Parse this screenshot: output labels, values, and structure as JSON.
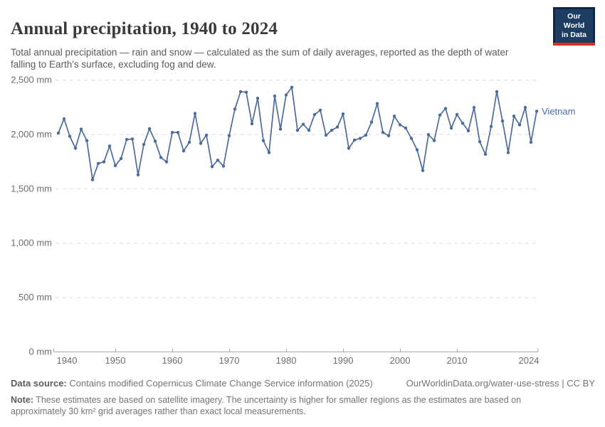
{
  "header": {
    "title": "Annual precipitation, 1940 to 2024",
    "subtitle": "Total annual precipitation — rain and snow — calculated as the sum of daily averages, reported as the depth of water falling to Earth's surface, excluding fog and dew.",
    "logo_line1": "Our World",
    "logo_line2": "in Data"
  },
  "chart_data": {
    "type": "line",
    "title": "Annual precipitation, 1940 to 2024",
    "unit": "mm",
    "xlim": [
      1940,
      2024
    ],
    "ylim": [
      0,
      2500
    ],
    "grid": "horizontal dashed",
    "legend_position": "end-of-line entity label",
    "entity_label": "Vietnam",
    "y_ticks": [
      0,
      500,
      1000,
      1500,
      2000,
      2500
    ],
    "y_tick_labels": [
      "0 mm",
      "500 mm",
      "1,000 mm",
      "1,500 mm",
      "2,000 mm",
      "2,500 mm"
    ],
    "x_ticks": [
      1940,
      1950,
      1960,
      1970,
      1980,
      1990,
      2000,
      2010,
      2024
    ],
    "x_tick_labels": [
      "1940",
      "1950",
      "1960",
      "1970",
      "1980",
      "1990",
      "2000",
      "2010",
      "2024"
    ],
    "series": [
      {
        "name": "Vietnam",
        "color": "#4c6a9c",
        "x": [
          1940,
          1941,
          1942,
          1943,
          1944,
          1945,
          1946,
          1947,
          1948,
          1949,
          1950,
          1951,
          1952,
          1953,
          1954,
          1955,
          1956,
          1957,
          1958,
          1959,
          1960,
          1961,
          1962,
          1963,
          1964,
          1965,
          1966,
          1967,
          1968,
          1969,
          1970,
          1971,
          1972,
          1973,
          1974,
          1975,
          1976,
          1977,
          1978,
          1979,
          1980,
          1981,
          1982,
          1983,
          1984,
          1985,
          1986,
          1987,
          1988,
          1989,
          1990,
          1991,
          1992,
          1993,
          1994,
          1995,
          1996,
          1997,
          1998,
          1999,
          2000,
          2001,
          2002,
          2003,
          2004,
          2005,
          2006,
          2007,
          2008,
          2009,
          2010,
          2011,
          2012,
          2013,
          2014,
          2015,
          2016,
          2017,
          2018,
          2019,
          2020,
          2021,
          2022,
          2023,
          2024
        ],
        "values": [
          2010,
          2140,
          1980,
          1870,
          2045,
          1940,
          1580,
          1730,
          1745,
          1890,
          1710,
          1775,
          1950,
          1955,
          1625,
          1905,
          2050,
          1935,
          1785,
          1745,
          2015,
          2015,
          1845,
          1925,
          2190,
          1915,
          1990,
          1700,
          1760,
          1705,
          1985,
          2230,
          2390,
          2385,
          2095,
          2330,
          1940,
          1830,
          2350,
          2045,
          2360,
          2430,
          2035,
          2090,
          2035,
          2180,
          2220,
          1990,
          2035,
          2065,
          2185,
          1870,
          1945,
          1960,
          1990,
          2110,
          2280,
          2015,
          1985,
          2165,
          2085,
          2055,
          1960,
          1855,
          1665,
          1995,
          1940,
          2175,
          2235,
          2055,
          2180,
          2100,
          2030,
          2245,
          1930,
          1815,
          2070,
          2390,
          2120,
          1830,
          2165,
          2085,
          2245,
          1925,
          2210
        ]
      }
    ]
  },
  "footer": {
    "data_source_label": "Data source:",
    "data_source_text": " Contains modified Copernicus Climate Change Service information (2025)",
    "link": "OurWorldinData.org/water-use-stress | CC BY",
    "note_label": "Note:",
    "note_text": " These estimates are based on satellite imagery. The uncertainty is higher for smaller regions as the estimates are based on approximately 30 km² grid averages rather than exact local measurements."
  },
  "colors": {
    "line": "#4c6a9c",
    "grid": "#dcdcdc",
    "axis": "#a8a8a8",
    "tick_text": "#6e6e6e",
    "logo_navy": "#1d3d63",
    "logo_red": "#e02b2b"
  }
}
